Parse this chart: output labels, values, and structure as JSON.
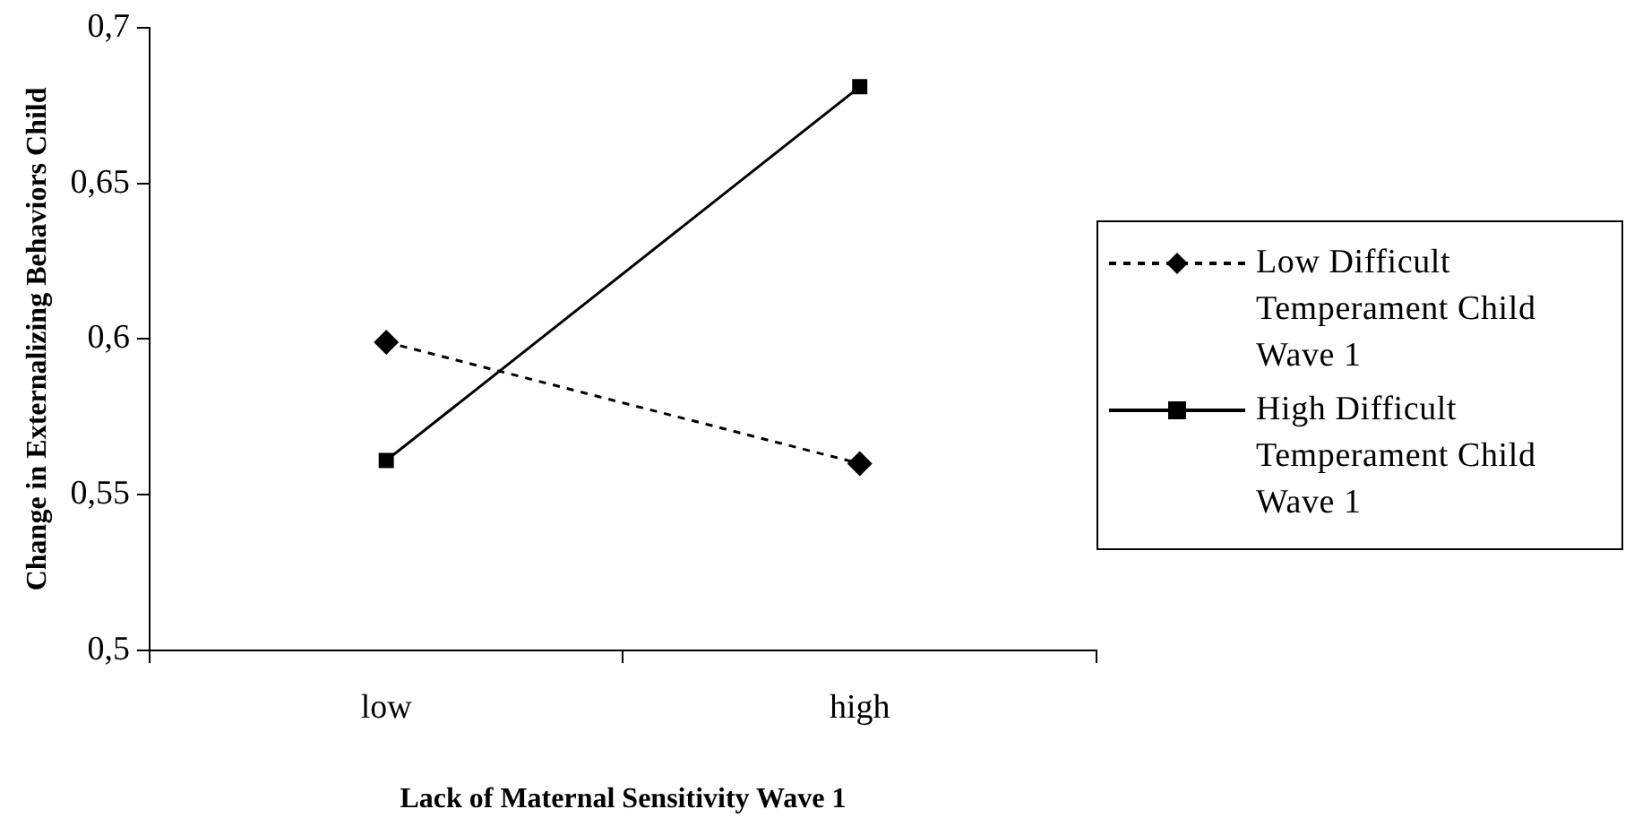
{
  "chart_data": {
    "type": "line",
    "xlabel": "Lack of Maternal Sensitivity Wave 1",
    "ylabel": "Change in Externalizing Behaviors Child",
    "categories": [
      "low",
      "high"
    ],
    "series": [
      {
        "name": "Low Difficult Temperament Child Wave 1",
        "color": "#000000",
        "values": [
          0.599,
          0.56
        ],
        "marker": "diamond",
        "line_style": "dashed"
      },
      {
        "name": "High Difficult Temperament Child Wave 1",
        "color": "#000000",
        "values": [
          0.561,
          0.681
        ],
        "marker": "square",
        "line_style": "solid"
      }
    ],
    "ylim": [
      0.5,
      0.7
    ],
    "yticks": [
      {
        "value": 0.5,
        "label": "0,5"
      },
      {
        "value": 0.55,
        "label": "0,55"
      },
      {
        "value": 0.6,
        "label": "0,6"
      },
      {
        "value": 0.65,
        "label": "0,65"
      },
      {
        "value": 0.7,
        "label": "0,7"
      }
    ],
    "grid": false,
    "legend": "right"
  }
}
